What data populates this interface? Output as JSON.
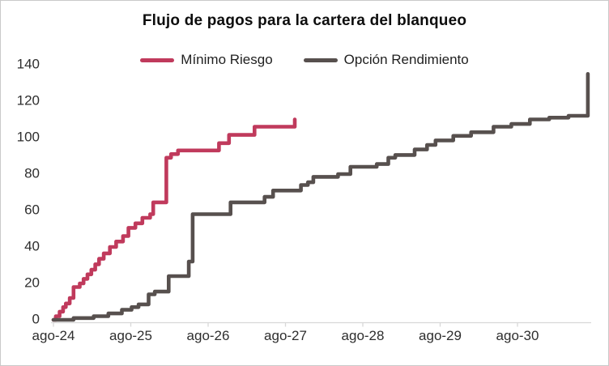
{
  "chart_data": {
    "type": "line",
    "subtype": "step-cumulative",
    "title": "Flujo de pagos para la cartera del blanqueo",
    "xlabel": "",
    "ylabel": "",
    "xticklabels": [
      "ago-24",
      "ago-25",
      "ago-26",
      "ago-27",
      "ago-28",
      "ago-29",
      "ago-30"
    ],
    "yticks": [
      0,
      20,
      40,
      60,
      80,
      100,
      120,
      140
    ],
    "ylim": [
      0,
      140
    ],
    "xlim_years_after_ago24": [
      0,
      6.95
    ],
    "grid": false,
    "legend_position": "top-center",
    "axis_color": "#d8d8d8",
    "text_color": "#2e2e2e",
    "series": [
      {
        "name": "Mínimo Riesgo",
        "color": "#c03a5c",
        "x_unit": "years after ago-24",
        "points": [
          [
            0,
            0
          ],
          [
            0.03,
            2
          ],
          [
            0.08,
            4.5
          ],
          [
            0.125,
            7
          ],
          [
            0.16,
            9
          ],
          [
            0.21,
            12
          ],
          [
            0.26,
            18
          ],
          [
            0.34,
            20
          ],
          [
            0.39,
            22.5
          ],
          [
            0.44,
            25
          ],
          [
            0.49,
            27.5
          ],
          [
            0.54,
            30.5
          ],
          [
            0.59,
            33.5
          ],
          [
            0.65,
            36.5
          ],
          [
            0.73,
            40
          ],
          [
            0.81,
            43
          ],
          [
            0.9,
            46
          ],
          [
            0.97,
            50.5
          ],
          [
            1.06,
            53
          ],
          [
            1.15,
            56
          ],
          [
            1.25,
            58
          ],
          [
            1.29,
            64.5
          ],
          [
            1.46,
            89
          ],
          [
            1.52,
            91
          ],
          [
            1.61,
            93
          ],
          [
            2.14,
            97
          ],
          [
            2.27,
            101.5
          ],
          [
            2.6,
            106
          ],
          [
            3.12,
            110
          ]
        ]
      },
      {
        "name": "Opción Rendimiento",
        "color": "#57504e",
        "x_unit": "years after ago-24",
        "points": [
          [
            0,
            0
          ],
          [
            0.26,
            1
          ],
          [
            0.52,
            2
          ],
          [
            0.71,
            3.5
          ],
          [
            0.885,
            5.5
          ],
          [
            1.01,
            7
          ],
          [
            1.1,
            8.5
          ],
          [
            1.23,
            14
          ],
          [
            1.31,
            15.5
          ],
          [
            1.49,
            24
          ],
          [
            1.75,
            32
          ],
          [
            1.8,
            58
          ],
          [
            2.29,
            64.5
          ],
          [
            2.73,
            67.5
          ],
          [
            2.84,
            71
          ],
          [
            3.2,
            74
          ],
          [
            3.29,
            75.5
          ],
          [
            3.36,
            78.5
          ],
          [
            3.68,
            80
          ],
          [
            3.84,
            84
          ],
          [
            4.18,
            85.5
          ],
          [
            4.33,
            89
          ],
          [
            4.42,
            90.5
          ],
          [
            4.67,
            93.5
          ],
          [
            4.83,
            96
          ],
          [
            4.94,
            98.5
          ],
          [
            5.17,
            101
          ],
          [
            5.4,
            103
          ],
          [
            5.69,
            106
          ],
          [
            5.92,
            107.5
          ],
          [
            6.16,
            110
          ],
          [
            6.41,
            111
          ],
          [
            6.66,
            112
          ],
          [
            6.91,
            135
          ]
        ]
      }
    ]
  }
}
